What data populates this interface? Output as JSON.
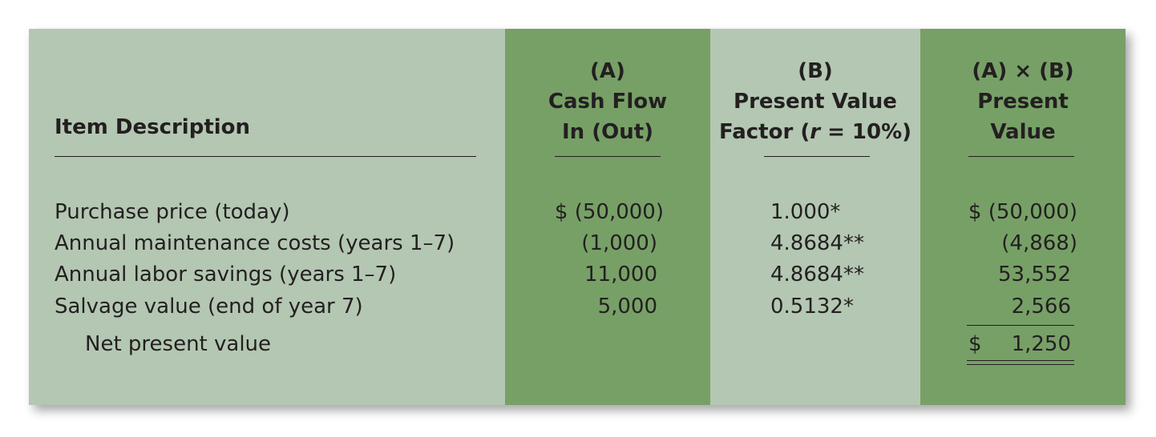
{
  "headers": {
    "item_description": "Item Description",
    "col_a": [
      "(A)",
      "Cash Flow",
      "In (Out)"
    ],
    "col_b_line1": "(B)",
    "col_b_line2": "Present Value",
    "col_b_line3_prefix": "Factor (",
    "col_b_line3_italic": "r",
    "col_b_line3_suffix": " = 10%)",
    "col_ab": [
      "(A) × (B)",
      "Present",
      "Value"
    ]
  },
  "rows": [
    {
      "description": "Purchase price (today)",
      "cash_flow": "$ (50,000)",
      "pv_factor": "1.000*",
      "present_value": "$ (50,000)"
    },
    {
      "description": "Annual maintenance costs (years 1–7)",
      "cash_flow": "(1,000)",
      "pv_factor": "4.8684**",
      "present_value": "(4,868)"
    },
    {
      "description": "Annual labor savings (years 1–7)",
      "cash_flow": "11,000",
      "pv_factor": "4.8684**",
      "present_value": "53,552"
    },
    {
      "description": "Salvage value (end of year 7)",
      "cash_flow": "5,000",
      "pv_factor": "0.5132*",
      "present_value": "2,566"
    }
  ],
  "total": {
    "label": "Net present value",
    "currency": "$",
    "value": "1,250"
  },
  "colors": {
    "panel": "#b3c7b2",
    "highlight_columns": "#77a067",
    "text": "#231f20"
  }
}
